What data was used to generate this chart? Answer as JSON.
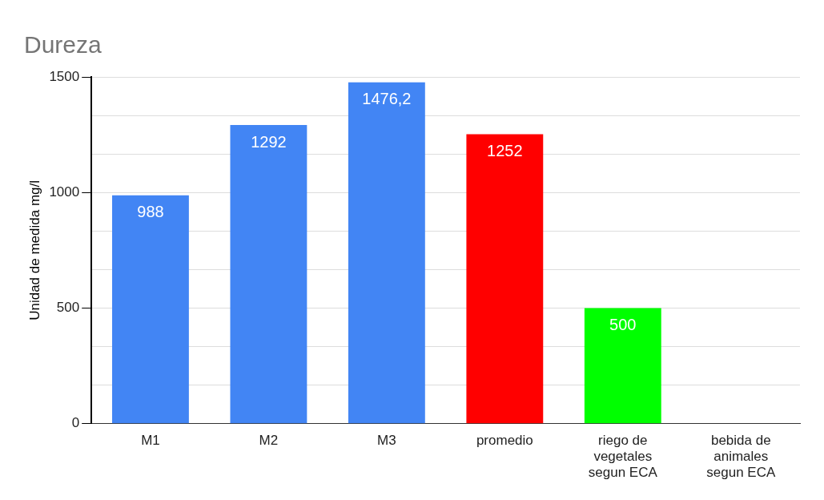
{
  "chart_data": {
    "type": "bar",
    "title": "Dureza",
    "ylabel": "Unidad de medida mg/l",
    "categories": [
      "M1",
      "M2",
      "M3",
      "promedio",
      "riego de vegetales segun ECA",
      "bebida de animales segun ECA"
    ],
    "values": [
      988,
      1292,
      1476.2,
      1252,
      500,
      null
    ],
    "colors": [
      "#4285f4",
      "#4285f4",
      "#4285f4",
      "#ff0000",
      "#00ff00",
      "#4285f4"
    ],
    "value_labels": [
      "988",
      "1292",
      "1476,2",
      "1252",
      "500",
      null
    ],
    "ylim": [
      0,
      1500
    ],
    "yticks": [
      0,
      {
        "value": 166.7,
        "label": null
      },
      {
        "value": 333.3,
        "label": null
      },
      500,
      {
        "value": 666.7,
        "label": null
      },
      {
        "value": 833.3,
        "label": null
      },
      1000,
      {
        "value": 1166.7,
        "label": null
      },
      {
        "value": 1333.3,
        "label": null
      },
      1500
    ],
    "grid": "y"
  }
}
